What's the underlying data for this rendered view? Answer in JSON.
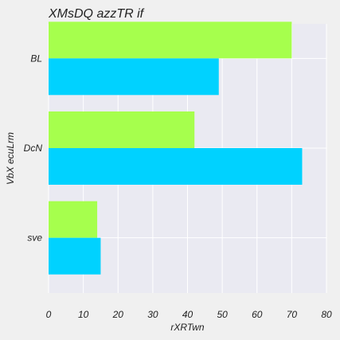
{
  "chart_data": {
    "type": "bar",
    "orientation": "horizontal",
    "title": "XMsDQ azzTR if",
    "xlabel": "rXRTwn",
    "ylabel": "VbX ecuLrm",
    "categories": [
      "BL",
      "DcN",
      "sve"
    ],
    "series": [
      {
        "values": [
          70,
          42,
          14
        ],
        "color": "#a6ff4d"
      },
      {
        "values": [
          49,
          73,
          15
        ],
        "color": "#00d2ff"
      }
    ],
    "xlim": [
      0,
      80
    ],
    "xticks": [
      0,
      10,
      20,
      30,
      40,
      50,
      60,
      70,
      80
    ],
    "grid": true,
    "plot_background": "#eaeaf2",
    "legend": "none"
  }
}
